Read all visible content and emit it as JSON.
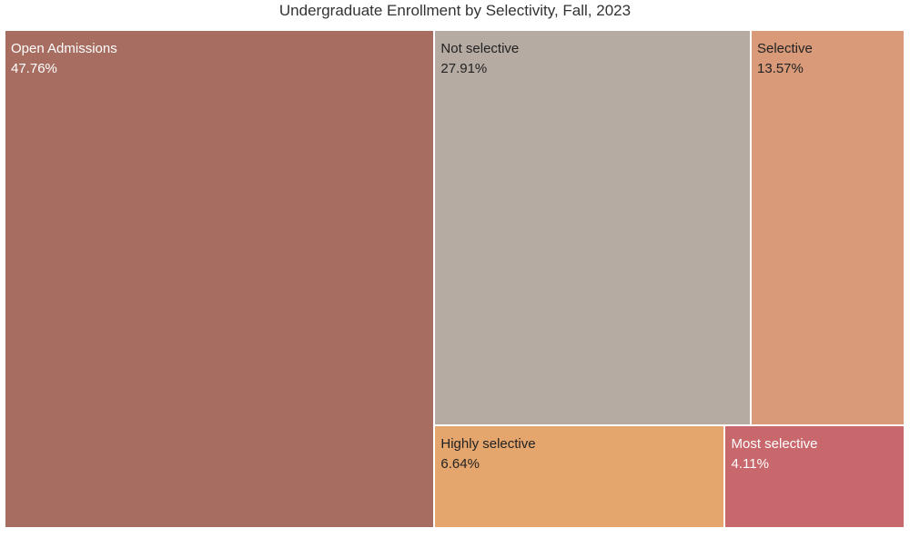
{
  "chart_data": {
    "type": "treemap",
    "title": "Undergraduate Enrollment by Selectivity, Fall, 2023",
    "categories": [
      "Open Admissions",
      "Not selective",
      "Selective",
      "Highly selective",
      "Most selective"
    ],
    "values": [
      47.76,
      27.91,
      13.57,
      6.64,
      4.11
    ],
    "value_labels": [
      "47.76%",
      "27.91%",
      "13.57%",
      "6.64%",
      "4.11%"
    ],
    "unit": "%",
    "colors": [
      "#a76d61",
      "#b5aba3",
      "#d89a79",
      "#e5a66e",
      "#c8676c"
    ],
    "text_colors": [
      "#ffffff",
      "#222222",
      "#222222",
      "#222222",
      "#ffffff"
    ]
  }
}
